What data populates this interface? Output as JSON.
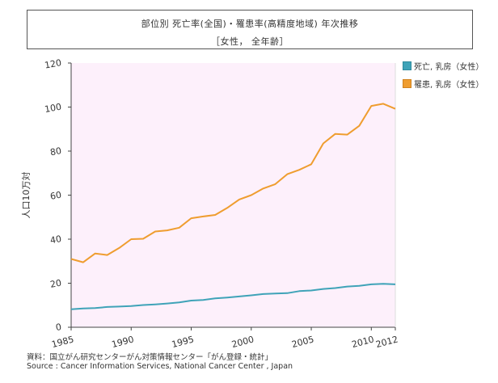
{
  "title_line1": "部位別  死亡率(全国)・罹患率(高精度地域)  年次推移",
  "title_line2": "［女性，  全年齢］",
  "footer": {
    "line1": "資料：国立がん研究センターがん対策情報センター「がん登録・統計」",
    "line2": "Source : Cancer Information Services, National Cancer Center , Japan"
  },
  "chart_data": {
    "type": "line",
    "title": "部位別  死亡率(全国)・罹患率(高精度地域)  年次推移",
    "subtitle": "［女性，  全年齢］",
    "xlabel": "",
    "ylabel": "人口10万対",
    "xlim": [
      1985,
      2012
    ],
    "ylim": [
      0,
      120
    ],
    "xticks": [
      1985,
      1990,
      1995,
      2000,
      2005,
      2010,
      2012
    ],
    "yticks": [
      0,
      20,
      40,
      60,
      80,
      100,
      120
    ],
    "grid": false,
    "legend_position": "right",
    "background_color": "#fdf0fb",
    "series": [
      {
        "name": "死亡, 乳房（女性）",
        "color": "#3fa3b8",
        "x": [
          1985,
          1986,
          1987,
          1988,
          1989,
          1990,
          1991,
          1992,
          1993,
          1994,
          1995,
          1996,
          1997,
          1998,
          1999,
          2000,
          2001,
          2002,
          2003,
          2004,
          2005,
          2006,
          2007,
          2008,
          2009,
          2010,
          2011,
          2012
        ],
        "values": [
          8.2,
          8.5,
          8.7,
          9.2,
          9.4,
          9.6,
          10.1,
          10.4,
          10.8,
          11.3,
          12.1,
          12.4,
          13.1,
          13.5,
          14.0,
          14.5,
          15.1,
          15.3,
          15.5,
          16.4,
          16.7,
          17.4,
          17.8,
          18.5,
          18.8,
          19.5,
          19.7,
          19.5
        ]
      },
      {
        "name": "罹患, 乳房（女性）",
        "color": "#ef9d2f",
        "x": [
          1985,
          1986,
          1987,
          1988,
          1989,
          1990,
          1991,
          1992,
          1993,
          1994,
          1995,
          1996,
          1997,
          1998,
          1999,
          2000,
          2001,
          2002,
          2003,
          2004,
          2005,
          2006,
          2007,
          2008,
          2009,
          2010,
          2011,
          2012
        ],
        "values": [
          31.0,
          29.5,
          33.5,
          32.8,
          36.0,
          40.0,
          40.2,
          43.5,
          44.0,
          45.2,
          49.5,
          50.3,
          51.0,
          54.2,
          58.0,
          60.0,
          63.0,
          65.0,
          69.5,
          71.5,
          74.0,
          83.5,
          87.8,
          87.5,
          91.5,
          100.5,
          101.5,
          99.2
        ]
      }
    ]
  }
}
